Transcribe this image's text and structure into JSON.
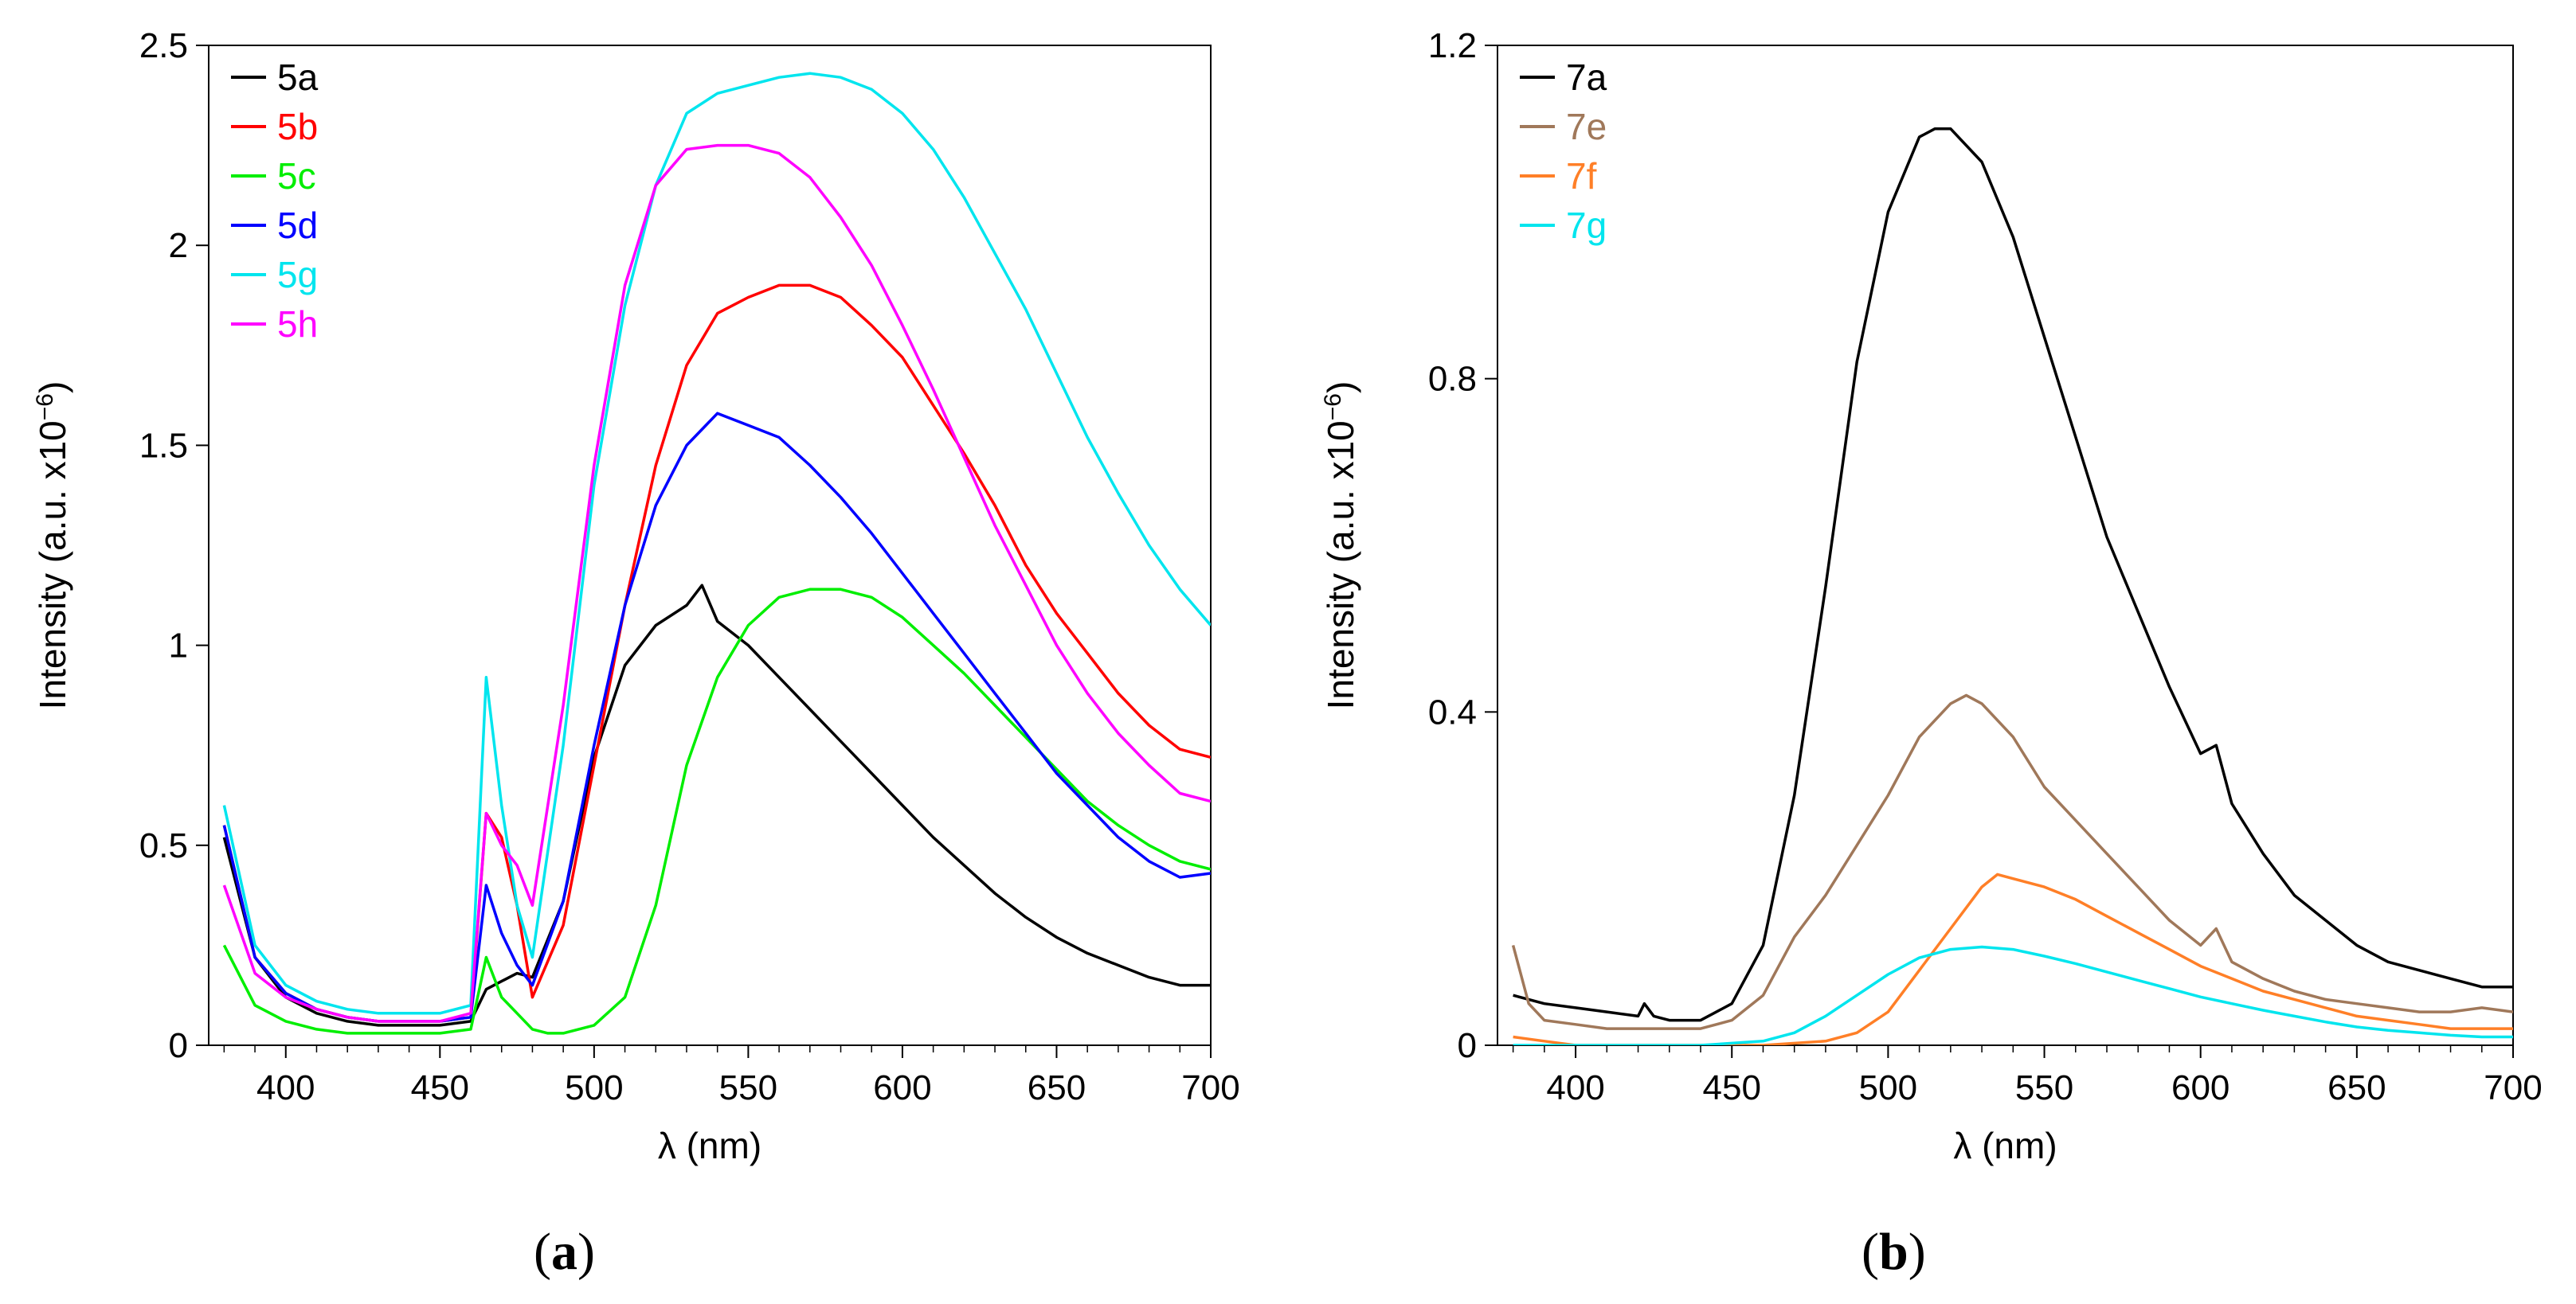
{
  "chart_data": [
    {
      "id": "a",
      "type": "line",
      "panel_label": "a",
      "xlabel": "λ (nm)",
      "ylabel": "Intensity (a.u. x10",
      "ylabel_exp": "−6",
      "ylabel_close": ")",
      "xlim": [
        375,
        700
      ],
      "ylim": [
        0,
        2.5
      ],
      "xticks": [
        400,
        450,
        500,
        550,
        600,
        650,
        700
      ],
      "xtick_labels": [
        "400",
        "450",
        "500",
        "550",
        "600",
        "650",
        "700"
      ],
      "yticks": [
        0,
        0.5,
        1,
        1.5,
        2,
        2.5
      ],
      "ytick_labels": [
        "0",
        "0.5",
        "1",
        "1.5",
        "2",
        "2.5"
      ],
      "legend_position": "top-left",
      "series": [
        {
          "name": "5a",
          "color": "#000000",
          "x": [
            380,
            390,
            400,
            410,
            420,
            430,
            440,
            450,
            460,
            465,
            470,
            475,
            480,
            490,
            500,
            510,
            520,
            530,
            535,
            540,
            550,
            560,
            570,
            580,
            590,
            600,
            610,
            620,
            630,
            640,
            650,
            660,
            670,
            680,
            690,
            700
          ],
          "y": [
            0.52,
            0.22,
            0.12,
            0.08,
            0.06,
            0.05,
            0.05,
            0.05,
            0.06,
            0.14,
            0.16,
            0.18,
            0.17,
            0.36,
            0.72,
            0.95,
            1.05,
            1.1,
            1.15,
            1.06,
            1.0,
            0.92,
            0.84,
            0.76,
            0.68,
            0.6,
            0.52,
            0.45,
            0.38,
            0.32,
            0.27,
            0.23,
            0.2,
            0.17,
            0.15,
            0.15
          ]
        },
        {
          "name": "5b",
          "color": "#ff0000",
          "x": [
            380,
            390,
            400,
            410,
            420,
            430,
            440,
            450,
            460,
            465,
            470,
            475,
            480,
            490,
            500,
            510,
            520,
            530,
            540,
            550,
            560,
            570,
            580,
            590,
            600,
            610,
            620,
            630,
            640,
            650,
            660,
            670,
            680,
            690,
            700
          ],
          "y": [
            0.55,
            0.22,
            0.13,
            0.09,
            0.07,
            0.06,
            0.06,
            0.06,
            0.07,
            0.58,
            0.52,
            0.35,
            0.12,
            0.3,
            0.7,
            1.1,
            1.45,
            1.7,
            1.83,
            1.87,
            1.9,
            1.9,
            1.87,
            1.8,
            1.72,
            1.6,
            1.48,
            1.35,
            1.2,
            1.08,
            0.98,
            0.88,
            0.8,
            0.74,
            0.72
          ]
        },
        {
          "name": "5c",
          "color": "#00ee00",
          "x": [
            380,
            390,
            400,
            410,
            420,
            430,
            440,
            450,
            460,
            465,
            470,
            475,
            480,
            485,
            490,
            500,
            510,
            520,
            530,
            540,
            550,
            560,
            570,
            580,
            590,
            600,
            610,
            620,
            630,
            640,
            650,
            660,
            670,
            680,
            690,
            700
          ],
          "y": [
            0.25,
            0.1,
            0.06,
            0.04,
            0.03,
            0.03,
            0.03,
            0.03,
            0.04,
            0.22,
            0.12,
            0.08,
            0.04,
            0.03,
            0.03,
            0.05,
            0.12,
            0.35,
            0.7,
            0.92,
            1.05,
            1.12,
            1.14,
            1.14,
            1.12,
            1.07,
            1.0,
            0.93,
            0.85,
            0.77,
            0.69,
            0.61,
            0.55,
            0.5,
            0.46,
            0.44
          ]
        },
        {
          "name": "5d",
          "color": "#0000ff",
          "x": [
            380,
            390,
            400,
            410,
            420,
            430,
            440,
            450,
            460,
            465,
            470,
            475,
            480,
            490,
            500,
            510,
            520,
            530,
            540,
            550,
            560,
            570,
            580,
            590,
            600,
            610,
            620,
            630,
            640,
            650,
            660,
            670,
            680,
            690,
            700
          ],
          "y": [
            0.55,
            0.22,
            0.13,
            0.09,
            0.07,
            0.06,
            0.06,
            0.06,
            0.07,
            0.4,
            0.28,
            0.2,
            0.15,
            0.36,
            0.75,
            1.1,
            1.35,
            1.5,
            1.58,
            1.55,
            1.52,
            1.45,
            1.37,
            1.28,
            1.18,
            1.08,
            0.98,
            0.88,
            0.78,
            0.68,
            0.6,
            0.52,
            0.46,
            0.42,
            0.43
          ]
        },
        {
          "name": "5g",
          "color": "#00e5ee",
          "x": [
            380,
            390,
            400,
            410,
            420,
            430,
            440,
            450,
            460,
            465,
            470,
            475,
            480,
            490,
            500,
            510,
            520,
            530,
            540,
            550,
            560,
            570,
            580,
            590,
            600,
            610,
            620,
            630,
            640,
            650,
            660,
            670,
            680,
            690,
            700
          ],
          "y": [
            0.6,
            0.25,
            0.15,
            0.11,
            0.09,
            0.08,
            0.08,
            0.08,
            0.1,
            0.92,
            0.6,
            0.35,
            0.22,
            0.75,
            1.4,
            1.85,
            2.15,
            2.33,
            2.38,
            2.4,
            2.42,
            2.43,
            2.42,
            2.39,
            2.33,
            2.24,
            2.12,
            1.98,
            1.84,
            1.68,
            1.52,
            1.38,
            1.25,
            1.14,
            1.05
          ]
        },
        {
          "name": "5h",
          "color": "#ff00ff",
          "x": [
            380,
            390,
            400,
            410,
            420,
            430,
            440,
            450,
            460,
            465,
            470,
            475,
            480,
            490,
            500,
            510,
            520,
            530,
            540,
            550,
            560,
            570,
            580,
            590,
            600,
            610,
            620,
            630,
            640,
            650,
            660,
            670,
            680,
            690,
            700
          ],
          "y": [
            0.4,
            0.18,
            0.12,
            0.09,
            0.07,
            0.06,
            0.06,
            0.06,
            0.08,
            0.58,
            0.5,
            0.45,
            0.35,
            0.85,
            1.45,
            1.9,
            2.15,
            2.24,
            2.25,
            2.25,
            2.23,
            2.17,
            2.07,
            1.95,
            1.8,
            1.64,
            1.47,
            1.3,
            1.15,
            1.0,
            0.88,
            0.78,
            0.7,
            0.63,
            0.61
          ]
        }
      ]
    },
    {
      "id": "b",
      "type": "line",
      "panel_label": "b",
      "xlabel": "λ (nm)",
      "ylabel": "Intensity (a.u. x10",
      "ylabel_exp": "−6",
      "ylabel_close": ")",
      "xlim": [
        375,
        700
      ],
      "ylim": [
        0,
        1.2
      ],
      "xticks": [
        400,
        450,
        500,
        550,
        600,
        650,
        700
      ],
      "xtick_labels": [
        "400",
        "450",
        "500",
        "550",
        "600",
        "650",
        "700"
      ],
      "yticks": [
        0,
        0.4,
        0.8,
        1.2
      ],
      "ytick_labels": [
        "0",
        "0.4",
        "0.8",
        "1.2"
      ],
      "legend_position": "top-left",
      "series": [
        {
          "name": "7a",
          "color": "#000000",
          "x": [
            380,
            390,
            400,
            410,
            420,
            422,
            425,
            430,
            440,
            450,
            460,
            470,
            480,
            490,
            500,
            510,
            515,
            520,
            530,
            540,
            550,
            560,
            570,
            580,
            590,
            600,
            605,
            610,
            620,
            630,
            640,
            650,
            660,
            670,
            680,
            690,
            700
          ],
          "y": [
            0.06,
            0.05,
            0.045,
            0.04,
            0.035,
            0.05,
            0.035,
            0.03,
            0.03,
            0.05,
            0.12,
            0.3,
            0.55,
            0.82,
            1.0,
            1.09,
            1.1,
            1.1,
            1.06,
            0.97,
            0.85,
            0.73,
            0.61,
            0.52,
            0.43,
            0.35,
            0.36,
            0.29,
            0.23,
            0.18,
            0.15,
            0.12,
            0.1,
            0.09,
            0.08,
            0.07,
            0.07
          ]
        },
        {
          "name": "7e",
          "color": "#a0785a",
          "x": [
            380,
            385,
            390,
            400,
            410,
            420,
            430,
            440,
            450,
            460,
            470,
            480,
            490,
            500,
            510,
            520,
            525,
            530,
            540,
            550,
            560,
            570,
            580,
            590,
            600,
            605,
            610,
            620,
            630,
            640,
            650,
            660,
            670,
            680,
            690,
            700
          ],
          "y": [
            0.12,
            0.05,
            0.03,
            0.025,
            0.02,
            0.02,
            0.02,
            0.02,
            0.03,
            0.06,
            0.13,
            0.18,
            0.24,
            0.3,
            0.37,
            0.41,
            0.42,
            0.41,
            0.37,
            0.31,
            0.27,
            0.23,
            0.19,
            0.15,
            0.12,
            0.14,
            0.1,
            0.08,
            0.065,
            0.055,
            0.05,
            0.045,
            0.04,
            0.04,
            0.045,
            0.04
          ]
        },
        {
          "name": "7f",
          "color": "#ff7f27",
          "x": [
            380,
            390,
            400,
            420,
            440,
            460,
            480,
            490,
            500,
            510,
            520,
            530,
            535,
            540,
            550,
            560,
            570,
            580,
            590,
            600,
            610,
            620,
            630,
            640,
            650,
            660,
            670,
            680,
            690,
            700
          ],
          "y": [
            0.01,
            0.005,
            0.0,
            0.0,
            0.0,
            0.0,
            0.005,
            0.015,
            0.04,
            0.09,
            0.14,
            0.19,
            0.205,
            0.2,
            0.19,
            0.175,
            0.155,
            0.135,
            0.115,
            0.095,
            0.08,
            0.065,
            0.055,
            0.045,
            0.035,
            0.03,
            0.025,
            0.02,
            0.02,
            0.02
          ]
        },
        {
          "name": "7g",
          "color": "#00e5ee",
          "x": [
            380,
            400,
            420,
            440,
            460,
            470,
            480,
            490,
            500,
            510,
            520,
            530,
            540,
            550,
            560,
            570,
            580,
            590,
            600,
            610,
            620,
            630,
            640,
            650,
            660,
            670,
            680,
            690,
            700
          ],
          "y": [
            0.0,
            0.0,
            0.0,
            0.0,
            0.005,
            0.015,
            0.035,
            0.06,
            0.085,
            0.105,
            0.115,
            0.118,
            0.115,
            0.107,
            0.098,
            0.088,
            0.078,
            0.068,
            0.058,
            0.05,
            0.042,
            0.035,
            0.028,
            0.022,
            0.018,
            0.015,
            0.012,
            0.01,
            0.01
          ]
        }
      ]
    }
  ]
}
